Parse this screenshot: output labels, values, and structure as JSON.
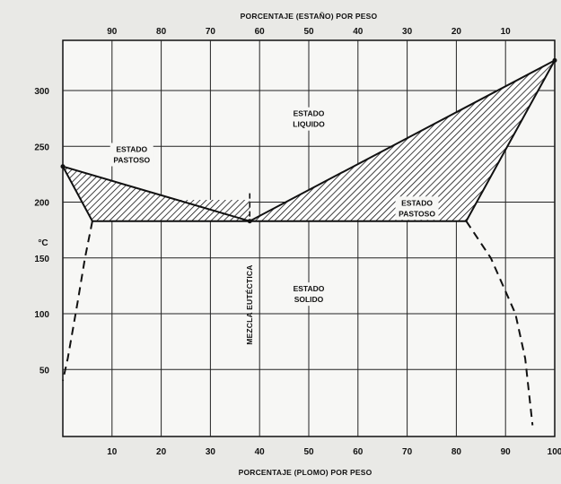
{
  "chart_data": {
    "type": "phase-diagram",
    "title": "",
    "top_axis_label": "PORCENTAJE (ESTAÑO) POR PESO",
    "top_axis_ticks": [
      "90",
      "80",
      "70",
      "60",
      "50",
      "40",
      "30",
      "20",
      "10"
    ],
    "bottom_axis_label": "PORCENTAJE (PLOMO) POR PESO",
    "bottom_axis_ticks": [
      "10",
      "20",
      "30",
      "40",
      "50",
      "60",
      "70",
      "80",
      "90",
      "100"
    ],
    "y_unit": "°C",
    "y_ticks": [
      "50",
      "100",
      "150",
      "200",
      "250",
      "300"
    ],
    "xlim": [
      0,
      100
    ],
    "ylim": [
      -10,
      345
    ],
    "grid": true,
    "regions": [
      {
        "lines": [
          "ESTADO",
          "LIQUIDO"
        ],
        "x": 50,
        "y": 277
      },
      {
        "lines": [
          "ESTADO",
          "PASTOSO"
        ],
        "x": 14,
        "y": 245
      },
      {
        "lines": [
          "ESTADO",
          "PASTOSO"
        ],
        "x": 72,
        "y": 197
      },
      {
        "lines": [
          "ESTADO",
          "SOLIDO"
        ],
        "x": 50,
        "y": 120
      }
    ],
    "eutectic_label": "MEZCLA EUTÉCTICA",
    "eutectic_point": {
      "x": 38,
      "y": 183
    },
    "liquidus": [
      [
        0,
        232
      ],
      [
        38,
        183
      ],
      [
        100,
        327
      ]
    ],
    "solidus_tin_side": [
      [
        0,
        232
      ],
      [
        6,
        183
      ],
      [
        38,
        183
      ]
    ],
    "solidus_lead_side": [
      [
        38,
        183
      ],
      [
        82,
        183
      ],
      [
        100,
        327
      ]
    ],
    "solvus_tin_side": [
      [
        6,
        183
      ],
      [
        4.5,
        150
      ],
      [
        3,
        110
      ],
      [
        1,
        60
      ],
      [
        0,
        40
      ]
    ],
    "solvus_lead_side": [
      [
        82,
        183
      ],
      [
        87,
        150
      ],
      [
        92,
        100
      ],
      [
        94,
        60
      ],
      [
        95.5,
        0
      ]
    ],
    "pastoso_tin_side": [
      [
        0,
        232
      ],
      [
        38,
        183
      ],
      [
        6,
        183
      ]
    ],
    "pastoso_lead_side": [
      [
        38,
        183
      ],
      [
        100,
        327
      ],
      [
        82,
        183
      ]
    ],
    "pastoso_band": [
      [
        6,
        183
      ],
      [
        38,
        183
      ],
      [
        38,
        202
      ],
      [
        6,
        202
      ]
    ]
  }
}
